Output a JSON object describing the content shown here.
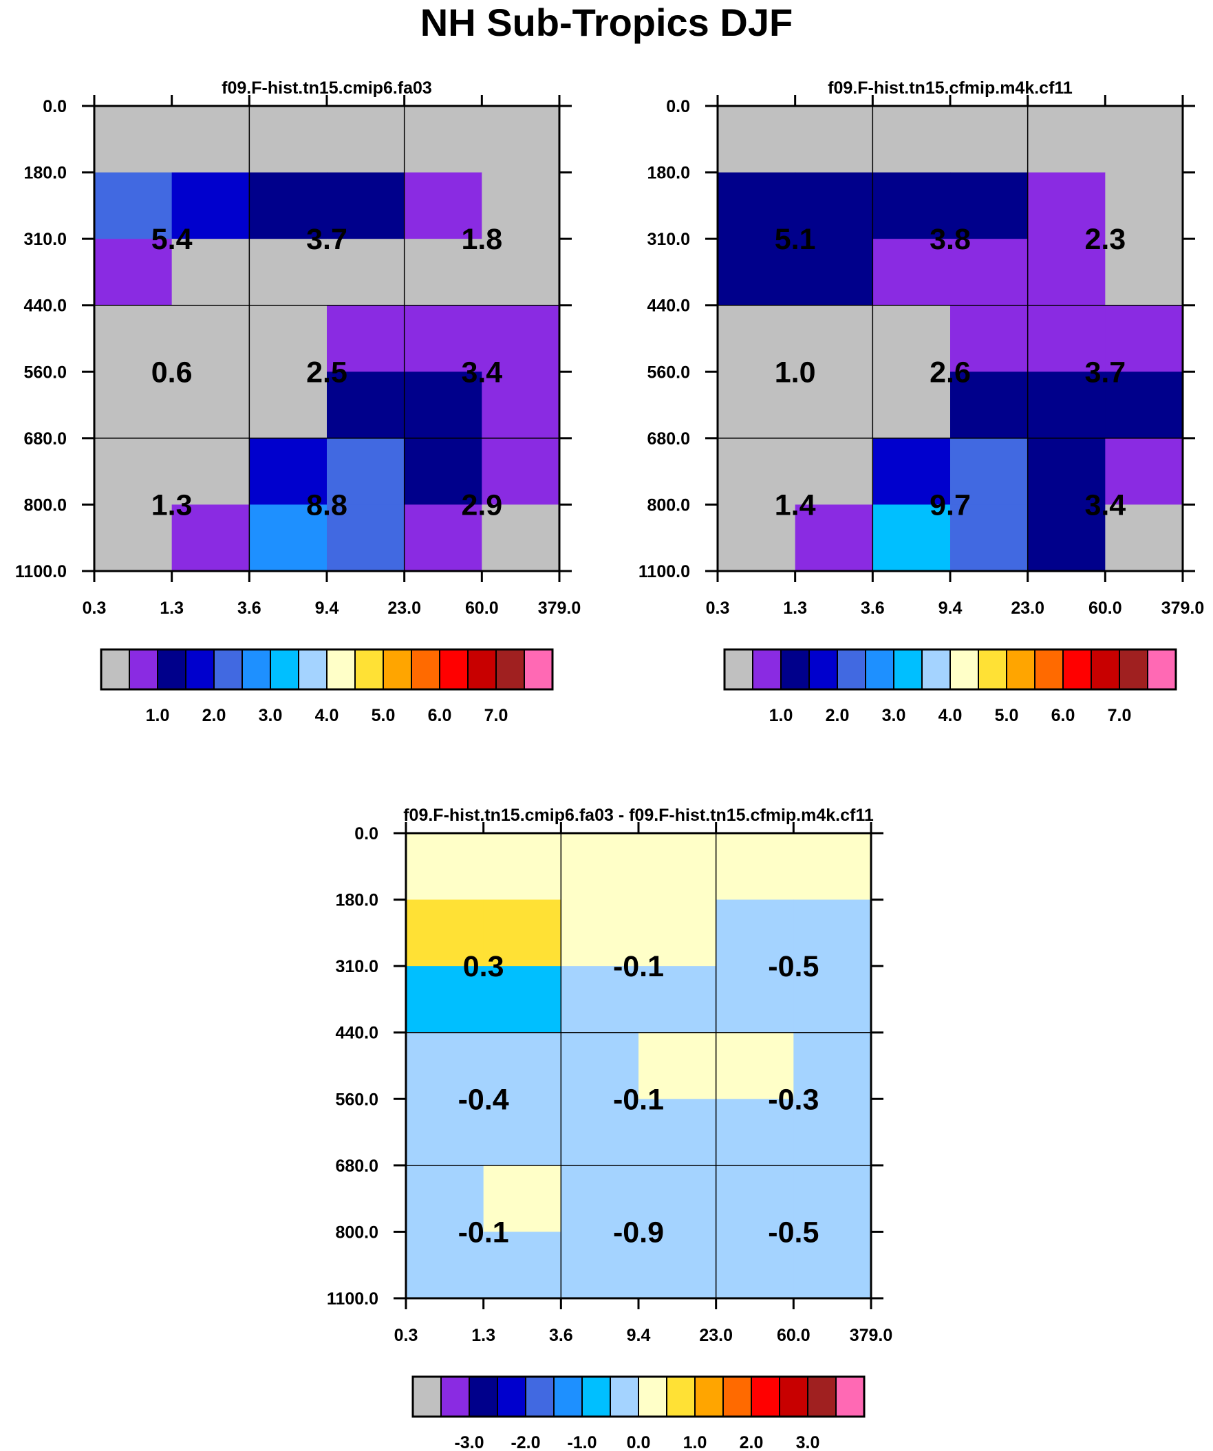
{
  "title": "NH Sub-Tropics DJF",
  "palette": [
    "#c0c0c0",
    "#8a2be2",
    "#00008b",
    "#0000cd",
    "#4169e1",
    "#1e90ff",
    "#00bfff",
    "#a4d3ff",
    "#ffffc8",
    "#ffe135",
    "#ffa500",
    "#ff6a00",
    "#ff0000",
    "#c80000",
    "#a02020",
    "#ff69b4"
  ],
  "chart_data": [
    {
      "type": "heatmap",
      "title": "f09.F-hist.tn15.cmip6.fa03",
      "x_tick_labels": [
        "0.3",
        "1.3",
        "3.6",
        "9.4",
        "23.0",
        "60.0",
        "379.0"
      ],
      "y_tick_labels": [
        "0.0",
        "180.0",
        "310.0",
        "440.0",
        "560.0",
        "680.0",
        "800.0",
        "1100.0"
      ],
      "cell_colors": [
        [
          0,
          0,
          0,
          0,
          0,
          0
        ],
        [
          4,
          3,
          2,
          2,
          1,
          0
        ],
        [
          1,
          0,
          0,
          0,
          0,
          0
        ],
        [
          0,
          0,
          0,
          1,
          1,
          1
        ],
        [
          0,
          0,
          0,
          2,
          2,
          1
        ],
        [
          0,
          0,
          3,
          4,
          2,
          1
        ],
        [
          0,
          1,
          5,
          4,
          1,
          0
        ]
      ],
      "cell_values": [
        [
          "5.4",
          "3.7",
          "1.8"
        ],
        [
          "0.6",
          "2.5",
          "3.4"
        ],
        [
          "1.3",
          "8.8",
          "2.9"
        ]
      ],
      "colorbar_labels": [
        "1.0",
        "2.0",
        "3.0",
        "4.0",
        "5.0",
        "6.0",
        "7.0"
      ]
    },
    {
      "type": "heatmap",
      "title": "f09.F-hist.tn15.cfmip.m4k.cf11",
      "x_tick_labels": [
        "0.3",
        "1.3",
        "3.6",
        "9.4",
        "23.0",
        "60.0",
        "379.0"
      ],
      "y_tick_labels": [
        "0.0",
        "180.0",
        "310.0",
        "440.0",
        "560.0",
        "680.0",
        "800.0",
        "1100.0"
      ],
      "cell_colors": [
        [
          0,
          0,
          0,
          0,
          0,
          0
        ],
        [
          2,
          2,
          2,
          2,
          1,
          0
        ],
        [
          2,
          2,
          1,
          1,
          1,
          0
        ],
        [
          0,
          0,
          0,
          1,
          1,
          1
        ],
        [
          0,
          0,
          0,
          2,
          2,
          2
        ],
        [
          0,
          0,
          3,
          4,
          2,
          1
        ],
        [
          0,
          1,
          6,
          4,
          2,
          0
        ]
      ],
      "cell_values": [
        [
          "5.1",
          "3.8",
          "2.3"
        ],
        [
          "1.0",
          "2.6",
          "3.7"
        ],
        [
          "1.4",
          "9.7",
          "3.4"
        ]
      ],
      "colorbar_labels": [
        "1.0",
        "2.0",
        "3.0",
        "4.0",
        "5.0",
        "6.0",
        "7.0"
      ]
    },
    {
      "type": "heatmap",
      "title": "f09.F-hist.tn15.cmip6.fa03 - f09.F-hist.tn15.cfmip.m4k.cf11",
      "x_tick_labels": [
        "0.3",
        "1.3",
        "3.6",
        "9.4",
        "23.0",
        "60.0",
        "379.0"
      ],
      "y_tick_labels": [
        "0.0",
        "180.0",
        "310.0",
        "440.0",
        "560.0",
        "680.0",
        "800.0",
        "1100.0"
      ],
      "cell_colors": [
        [
          8,
          8,
          8,
          8,
          8,
          8
        ],
        [
          9,
          9,
          8,
          8,
          7,
          7
        ],
        [
          6,
          6,
          7,
          7,
          7,
          7
        ],
        [
          7,
          7,
          7,
          8,
          8,
          7
        ],
        [
          7,
          7,
          7,
          7,
          7,
          7
        ],
        [
          7,
          8,
          7,
          7,
          7,
          7
        ],
        [
          7,
          7,
          7,
          7,
          7,
          7
        ]
      ],
      "cell_values": [
        [
          "0.3",
          "-0.1",
          "-0.5"
        ],
        [
          "-0.4",
          "-0.1",
          "-0.3"
        ],
        [
          "-0.1",
          "-0.9",
          "-0.5"
        ]
      ],
      "colorbar_labels": [
        "-3.0",
        "-2.0",
        "-1.0",
        "0.0",
        "1.0",
        "2.0",
        "3.0"
      ]
    }
  ]
}
